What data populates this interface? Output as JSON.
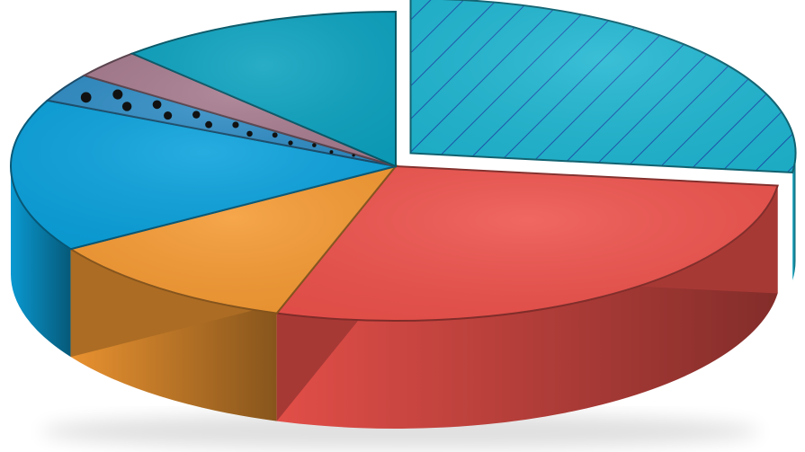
{
  "chart_data": {
    "type": "pie",
    "style": "3d-exploded",
    "title": "",
    "legend": "none",
    "slices": [
      {
        "value": 27,
        "color": "#1fb6d1",
        "pattern": "diagonal-hatch",
        "exploded": true
      },
      {
        "value": 28,
        "color": "#ee524c",
        "pattern": "none",
        "exploded": false
      },
      {
        "value": 11,
        "color": "#f59a33",
        "pattern": "none",
        "exploded": false
      },
      {
        "value": 16,
        "color": "#0aa1dc",
        "pattern": "none",
        "exploded": false
      },
      {
        "value": 3,
        "color": "#2f8cc4",
        "pattern": "dots",
        "exploded": false
      },
      {
        "value": 3,
        "color": "#a67b8e",
        "pattern": "none",
        "exploded": false
      },
      {
        "value": 12,
        "color": "#0ca2bf",
        "pattern": "none",
        "exploded": false
      }
    ]
  }
}
